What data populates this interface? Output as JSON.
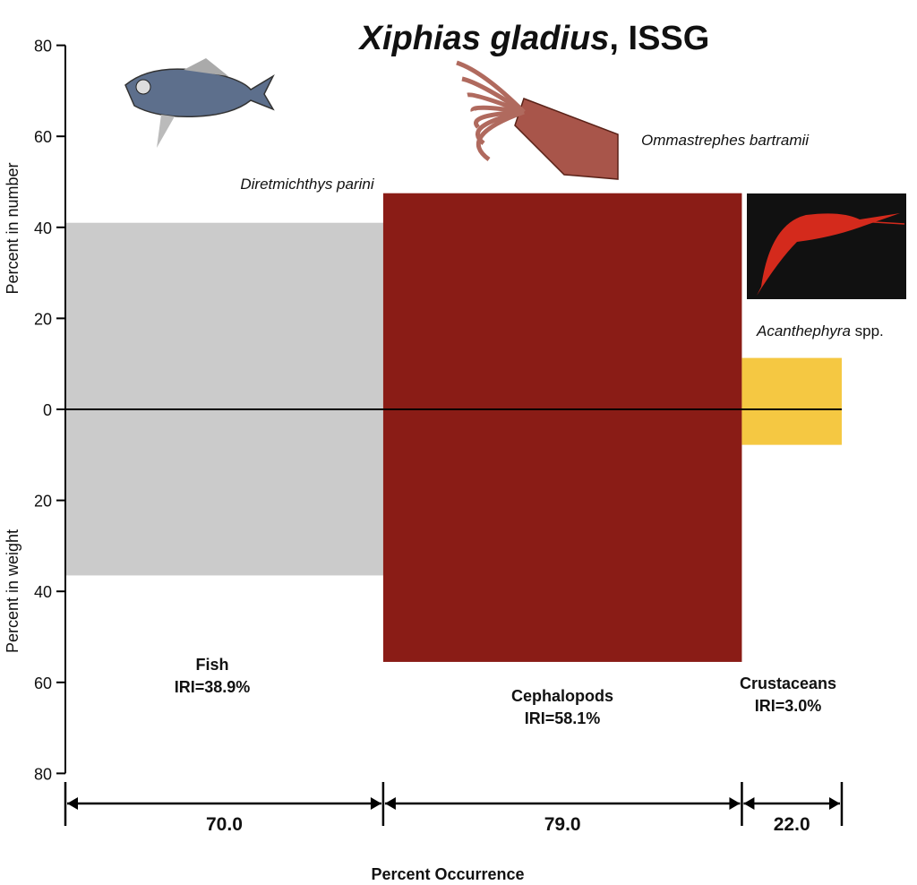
{
  "chart_data": {
    "type": "bar",
    "subtype": "costello-iri-diagram",
    "title_italic": "Xiphias gladius",
    "title_rest": ", ISSG",
    "ylabel_top": "Percent in number",
    "ylabel_bottom": "Percent in weight",
    "xlabel": "Percent Occurrence",
    "yticks_top": [
      "80",
      "60",
      "40",
      "20",
      "0"
    ],
    "yticks_bottom": [
      "20",
      "40",
      "60",
      "80"
    ],
    "ylim_number": [
      0,
      80
    ],
    "ylim_weight": [
      0,
      80
    ],
    "series": [
      {
        "name": "Fish",
        "iri_label": "IRI=38.9%",
        "occurrence": 70.0,
        "occurrence_label": "70.0",
        "number": 41,
        "weight": 36.5,
        "color": "#cbcbcb",
        "species_italic": "Diretmichthys parini",
        "species_rest": ""
      },
      {
        "name": "Cephalopods",
        "iri_label": "IRI=58.1%",
        "occurrence": 79.0,
        "occurrence_label": "79.0",
        "number": 47.5,
        "weight": 55.5,
        "color": "#8a1c16",
        "species_italic": "Ommastrephes bartramii",
        "species_rest": ""
      },
      {
        "name": "Crustaceans",
        "iri_label": "IRI=3.0%",
        "occurrence": 22.0,
        "occurrence_label": "22.0",
        "number": 11.3,
        "weight": 7.8,
        "color": "#f5c842",
        "species_italic": "Acanthephyra",
        "species_rest": " spp."
      }
    ]
  }
}
